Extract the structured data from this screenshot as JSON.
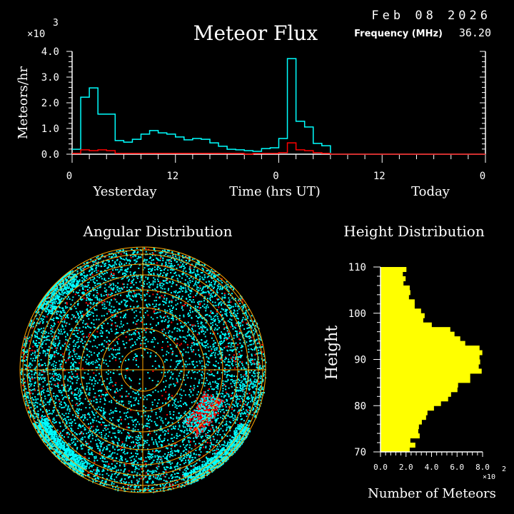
{
  "header": {
    "date": "Feb 08 2026",
    "title": "Meteor Flux",
    "frequency_label": "Frequency (MHz)",
    "frequency_value": "36.20"
  },
  "colors": {
    "background": "#000000",
    "all_meteors": "#00ffff",
    "underdense": "#ff0000",
    "height_bars": "#ffff00",
    "grid": "#ffa500",
    "axes": "#ffffff"
  },
  "chart_data": [
    {
      "type": "line",
      "style": "step",
      "title": "Meteor Flux",
      "ylabel": "Meteors/hr",
      "xlabel": "Time (hrs UT)",
      "y_multiplier": "x10^3",
      "multiplier_base": "×10",
      "multiplier_exp": "3",
      "day_labels": [
        "Yesterday",
        "Today"
      ],
      "xticks": [
        "0",
        "12",
        "0",
        "12",
        "0"
      ],
      "yticks": [
        "0.0",
        "1.0",
        "2.0",
        "3.0",
        "4.0"
      ],
      "xlim_hours": [
        0,
        48
      ],
      "ylim": [
        0,
        4.0
      ],
      "grid": false,
      "series": [
        {
          "color": "#00ffff",
          "values": [
            0.19,
            2.22,
            2.58,
            1.56,
            1.56,
            0.53,
            0.47,
            0.58,
            0.78,
            0.92,
            0.83,
            0.78,
            0.67,
            0.56,
            0.61,
            0.58,
            0.44,
            0.31,
            0.19,
            0.17,
            0.14,
            0.11,
            0.22,
            0.25,
            0.61,
            3.72,
            1.28,
            1.06,
            0.42,
            0.33,
            0,
            0,
            0,
            0,
            0,
            0,
            0,
            0,
            0,
            0,
            0,
            0,
            0,
            0,
            0,
            0,
            0,
            0
          ]
        },
        {
          "color": "#ff0000",
          "values": [
            0.03,
            0.17,
            0.14,
            0.17,
            0.14,
            0.03,
            0.03,
            0.03,
            0.03,
            0.03,
            0.03,
            0.03,
            0.03,
            0.03,
            0.03,
            0.03,
            0.03,
            0.03,
            0.03,
            0.03,
            0,
            0.03,
            0.03,
            0.03,
            0.06,
            0.44,
            0.17,
            0.14,
            0.06,
            0.03,
            0,
            0,
            0,
            0,
            0,
            0,
            0,
            0,
            0,
            0,
            0,
            0,
            0,
            0,
            0,
            0,
            0,
            0
          ]
        }
      ]
    },
    {
      "type": "scatter",
      "projection": "polar",
      "title": "Angular Distribution",
      "grid": true
    },
    {
      "type": "bar",
      "orientation": "horizontal",
      "title": "Height Distribution",
      "xlabel": "Number of Meteors",
      "ylabel": "Height",
      "x_multiplier_base": "×10",
      "x_multiplier_exp": "2",
      "xticks": [
        "0.0",
        "2.0",
        "4.0",
        "6.0",
        "8.0"
      ],
      "yticks": [
        "70",
        "80",
        "90",
        "100",
        "110"
      ],
      "xlim": [
        0,
        8.0
      ],
      "ylim": [
        70,
        110
      ],
      "bin_width_km": 1,
      "heights_from_70": [
        70,
        71,
        72,
        73,
        74,
        75,
        76,
        77,
        78,
        79,
        80,
        81,
        82,
        83,
        84,
        85,
        86,
        87,
        88,
        89,
        90,
        91,
        92,
        93,
        94,
        95,
        96,
        97,
        98,
        99,
        100,
        101,
        102,
        103,
        104,
        105,
        106,
        107,
        108,
        109
      ],
      "values": [
        2.29,
        2.73,
        2.34,
        3.07,
        2.96,
        3.01,
        3.24,
        3.57,
        3.68,
        4.19,
        4.74,
        5.3,
        5.53,
        6.03,
        6.08,
        7.03,
        7.03,
        7.93,
        7.7,
        7.81,
        7.76,
        7.98,
        7.76,
        6.64,
        6.25,
        5.8,
        5.47,
        4.02,
        3.35,
        3.46,
        3.18,
        2.68,
        2.68,
        2.23,
        2.34,
        2.29,
        1.8,
        1.97,
        1.75,
        2.03
      ]
    }
  ]
}
